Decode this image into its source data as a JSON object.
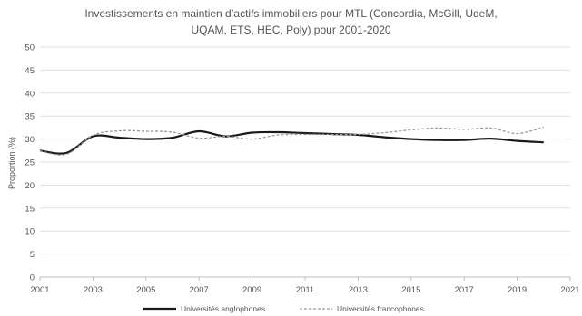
{
  "chart_data": {
    "type": "line",
    "title_line1": "Investissements en maintien d’actifs immobiliers pour MTL (Concordia, McGill, UdeM,",
    "title_line2": "UQAM, ETS, HEC, Poly) pour 2001-2020",
    "xlabel": "",
    "ylabel": "Proportion (%)",
    "ylim": [
      0,
      50
    ],
    "xlim": [
      2001,
      2021
    ],
    "y_ticks": [
      "0",
      "5",
      "10",
      "15",
      "20",
      "25",
      "30",
      "35",
      "40",
      "45",
      "50"
    ],
    "x_ticks": [
      "2001",
      "2003",
      "2005",
      "2007",
      "2009",
      "2011",
      "2013",
      "2015",
      "2017",
      "2019",
      "2021"
    ],
    "grid": true,
    "legend_position": "bottom",
    "series": [
      {
        "name": "Universités anglophones",
        "style": "solid",
        "color": "#1a1a1a",
        "x": [
          2001,
          2002,
          2003,
          2004,
          2005,
          2006,
          2007,
          2008,
          2009,
          2010,
          2011,
          2012,
          2013,
          2014,
          2015,
          2016,
          2017,
          2018,
          2019,
          2020
        ],
        "values": [
          27.5,
          27.0,
          30.6,
          30.3,
          30.0,
          30.3,
          31.7,
          30.6,
          31.4,
          31.5,
          31.3,
          31.1,
          30.9,
          30.4,
          30.0,
          29.8,
          29.8,
          30.1,
          29.6,
          29.3
        ]
      },
      {
        "name": "Universités francophones",
        "style": "dashed",
        "color": "#9a9a9a",
        "x": [
          2001,
          2002,
          2003,
          2004,
          2005,
          2006,
          2007,
          2008,
          2009,
          2010,
          2011,
          2012,
          2013,
          2014,
          2015,
          2016,
          2017,
          2018,
          2019,
          2020
        ],
        "values": [
          27.4,
          26.7,
          30.8,
          31.8,
          31.7,
          31.5,
          30.2,
          30.6,
          30.0,
          30.9,
          31.0,
          31.0,
          31.0,
          31.4,
          32.0,
          32.4,
          32.1,
          32.4,
          31.2,
          32.6
        ]
      }
    ]
  }
}
